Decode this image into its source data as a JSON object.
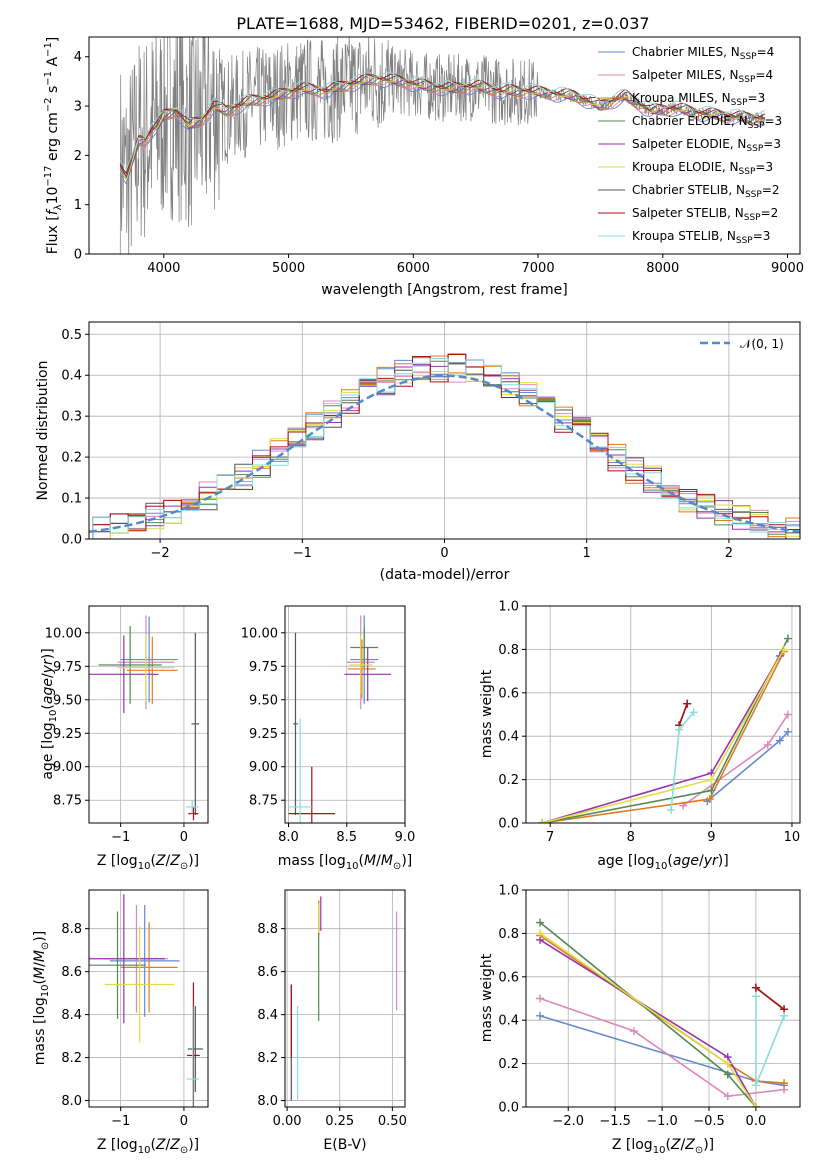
{
  "title": "PLATE=1688, MJD=53462, FIBERID=0201, z=0.037",
  "models": [
    {
      "name": "Chabrier MILES, N$_{SSP}$=4",
      "label": "Chabrier MILES, N",
      "sub": "SSP",
      "tail": "=4",
      "color": "#6688cc"
    },
    {
      "name": "Salpeter MILES, N$_{SSP}$=4",
      "label": "Salpeter MILES, N",
      "sub": "SSP",
      "tail": "=4",
      "color": "#dd88bb"
    },
    {
      "name": "Kroupa MILES, N$_{SSP}$=3",
      "label": "Kroupa MILES, N",
      "sub": "SSP",
      "tail": "=3",
      "color": "#e07b22"
    },
    {
      "name": "Chabrier ELODIE, N$_{SSP}$=3",
      "label": "Chabrier ELODIE, N",
      "sub": "SSP",
      "tail": "=3",
      "color": "#558855"
    },
    {
      "name": "Salpeter ELODIE, N$_{SSP}$=3",
      "label": "Salpeter ELODIE, N",
      "sub": "SSP",
      "tail": "=3",
      "color": "#9933aa"
    },
    {
      "name": "Kroupa ELODIE, N$_{SSP}$=3",
      "label": "Kroupa ELODIE, N",
      "sub": "SSP",
      "tail": "=3",
      "color": "#dddd44"
    },
    {
      "name": "Chabrier STELIB, N$_{SSP}$=2",
      "label": "Chabrier STELIB, N",
      "sub": "SSP",
      "tail": "=2",
      "color": "#555555"
    },
    {
      "name": "Salpeter STELIB, N$_{SSP}$=2",
      "label": "Salpeter STELIB, N",
      "sub": "SSP",
      "tail": "=2",
      "color": "#aa1111"
    },
    {
      "name": "Kroupa STELIB, N$_{SSP}$=3",
      "label": "Kroupa STELIB, N",
      "sub": "SSP",
      "tail": "=3",
      "color": "#88dddd"
    }
  ],
  "chart_data": [
    {
      "id": "spectrum",
      "type": "line",
      "xlabel": "wavelength [Angstrom, rest frame]",
      "ylabel": "Flux [f_λ 10^-17 erg cm^-2 s^-1 A^-1]",
      "xlim": [
        3400,
        9100
      ],
      "ylim": [
        0,
        4.4
      ],
      "xticks": [
        4000,
        5000,
        6000,
        7000,
        8000,
        9000
      ],
      "yticks": [
        0,
        1,
        2,
        3,
        4
      ],
      "legend": "top-right",
      "data_color": "#808080",
      "continuum_points": {
        "x": [
          3650,
          3700,
          3750,
          3800,
          3850,
          3900,
          3950,
          4000,
          4100,
          4200,
          4300,
          4400,
          4500,
          4700,
          4900,
          5100,
          5300,
          5500,
          5700,
          5900,
          6100,
          6300,
          6500,
          6700,
          6900,
          7100,
          7300,
          7500,
          7700,
          7900,
          8100,
          8300,
          8500,
          8700,
          8820
        ],
        "y": [
          1.8,
          1.55,
          1.9,
          2.3,
          2.3,
          2.5,
          2.6,
          2.8,
          2.9,
          2.6,
          2.7,
          3.0,
          2.9,
          3.1,
          3.2,
          3.35,
          3.3,
          3.45,
          3.55,
          3.5,
          3.4,
          3.35,
          3.4,
          3.3,
          3.3,
          3.25,
          3.2,
          3.0,
          3.2,
          2.9,
          2.95,
          2.85,
          2.8,
          2.75,
          2.75
        ]
      }
    },
    {
      "id": "residuals",
      "type": "line",
      "xlabel": "(data-model)/error",
      "ylabel": "Normed distribution",
      "xlim": [
        -2.5,
        2.5
      ],
      "ylim": [
        0,
        0.53
      ],
      "xticks": [
        -2,
        -1,
        0,
        1,
        2
      ],
      "yticks": [
        0.0,
        0.1,
        0.2,
        0.3,
        0.4,
        0.5
      ],
      "legend": "top-right",
      "series": [
        {
          "name": "𝒩(0, 1)",
          "color": "#5588cc"
        }
      ]
    },
    {
      "id": "age-vs-Z",
      "type": "scatter",
      "xlabel": "Z [log10(Z/Z⊙)]",
      "ylabel": "age [log10(age/yr)]",
      "xlim": [
        -1.5,
        0.38
      ],
      "ylim": [
        8.58,
        10.2
      ],
      "xticks": [
        -1,
        0
      ],
      "yticks": [
        8.75,
        9.0,
        9.25,
        9.5,
        9.75,
        10.0
      ]
    },
    {
      "id": "age-vs-mass",
      "type": "scatter",
      "xlabel": "mass [log10(M/M⊙)]",
      "xlim": [
        7.97,
        9.0
      ],
      "ylim": [
        8.58,
        10.2
      ],
      "xticks": [
        8.0,
        8.5,
        9.0
      ],
      "yticks": [
        8.75,
        9.0,
        9.25,
        9.5,
        9.75,
        10.0
      ]
    },
    {
      "id": "weight-vs-age",
      "type": "line",
      "xlabel": "age [log10(age/yr)]",
      "ylabel": "mass weight",
      "xlim": [
        6.7,
        10.1
      ],
      "ylim": [
        0,
        1.0
      ],
      "xticks": [
        7,
        8,
        9,
        10
      ],
      "yticks": [
        0.0,
        0.2,
        0.4,
        0.6,
        0.8,
        1.0
      ],
      "series": [
        {
          "name": "Chabrier MILES",
          "x": [
            8.95,
            9.85,
            9.95
          ],
          "y": [
            0.1,
            0.38,
            0.42
          ]
        },
        {
          "name": "Salpeter MILES",
          "x": [
            8.65,
            9.7,
            9.95
          ],
          "y": [
            0.08,
            0.36,
            0.5
          ]
        },
        {
          "name": "Kroupa MILES",
          "x": [
            6.9,
            8.98,
            9.9
          ],
          "y": [
            0.0,
            0.11,
            0.79
          ]
        },
        {
          "name": "Chabrier ELODIE",
          "x": [
            6.9,
            9.0,
            9.95
          ],
          "y": [
            0.0,
            0.15,
            0.85
          ]
        },
        {
          "name": "Salpeter ELODIE",
          "x": [
            6.9,
            9.0,
            9.85
          ],
          "y": [
            0.0,
            0.23,
            0.77
          ]
        },
        {
          "name": "Kroupa ELODIE",
          "x": [
            6.9,
            9.0,
            9.9
          ],
          "y": [
            0.0,
            0.2,
            0.8
          ]
        },
        {
          "name": "Chabrier STELIB",
          "x": [
            8.6,
            8.7
          ],
          "y": [
            0.45,
            0.55
          ]
        },
        {
          "name": "Salpeter STELIB",
          "x": [
            8.6,
            8.7
          ],
          "y": [
            0.45,
            0.55
          ]
        },
        {
          "name": "Kroupa STELIB",
          "x": [
            8.5,
            8.6,
            8.78
          ],
          "y": [
            0.06,
            0.43,
            0.51
          ]
        }
      ]
    },
    {
      "id": "mass-vs-Z",
      "type": "scatter",
      "xlabel": "Z [log10(Z/Z⊙)]",
      "ylabel": "mass [log10(M/M⊙)]",
      "xlim": [
        -1.5,
        0.38
      ],
      "ylim": [
        7.97,
        8.98
      ],
      "xticks": [
        -1,
        0
      ],
      "yticks": [
        8.0,
        8.2,
        8.4,
        8.6,
        8.8
      ]
    },
    {
      "id": "mass-vs-EBV",
      "type": "scatter",
      "xlabel": "E(B-V)",
      "xlim": [
        -0.01,
        0.56
      ],
      "ylim": [
        7.97,
        8.98
      ],
      "xticks": [
        0.0,
        0.25,
        0.5
      ],
      "yticks": [
        8.0,
        8.2,
        8.4,
        8.6,
        8.8
      ]
    },
    {
      "id": "weight-vs-Z",
      "type": "line",
      "xlabel": "Z [log10(Z/Z⊙)]",
      "ylabel": "mass weight",
      "xlim": [
        -2.45,
        0.47
      ],
      "ylim": [
        0,
        1.0
      ],
      "xticks": [
        -2.0,
        -1.5,
        -1.0,
        -0.5,
        0.0
      ],
      "yticks": [
        0.0,
        0.2,
        0.4,
        0.6,
        0.8,
        1.0
      ],
      "series": [
        {
          "name": "Chabrier MILES",
          "x": [
            -2.3,
            0.0,
            0.3
          ],
          "y": [
            0.42,
            0.12,
            0.1
          ]
        },
        {
          "name": "Salpeter MILES",
          "x": [
            -2.3,
            -1.3,
            -0.3,
            0.3
          ],
          "y": [
            0.5,
            0.35,
            0.05,
            0.08
          ]
        },
        {
          "name": "Kroupa MILES",
          "x": [
            -2.3,
            -0.3,
            0.0,
            0.3
          ],
          "y": [
            0.79,
            0.2,
            0.12,
            0.11
          ]
        },
        {
          "name": "Chabrier ELODIE",
          "x": [
            -2.3,
            -0.3,
            0.0
          ],
          "y": [
            0.85,
            0.15,
            0.0
          ]
        },
        {
          "name": "Salpeter ELODIE",
          "x": [
            -2.3,
            -0.3,
            0.0
          ],
          "y": [
            0.77,
            0.23,
            0.0
          ]
        },
        {
          "name": "Kroupa ELODIE",
          "x": [
            -2.3,
            -0.3,
            0.0
          ],
          "y": [
            0.8,
            0.2,
            0.0
          ]
        },
        {
          "name": "Chabrier STELIB",
          "x": [
            0.0,
            0.3
          ],
          "y": [
            0.55,
            0.45
          ]
        },
        {
          "name": "Salpeter STELIB",
          "x": [
            0.0,
            0.3
          ],
          "y": [
            0.55,
            0.45
          ]
        },
        {
          "name": "Kroupa STELIB",
          "x": [
            0.0,
            0.0,
            0.3
          ],
          "y": [
            0.51,
            0.1,
            0.42
          ]
        }
      ]
    }
  ]
}
